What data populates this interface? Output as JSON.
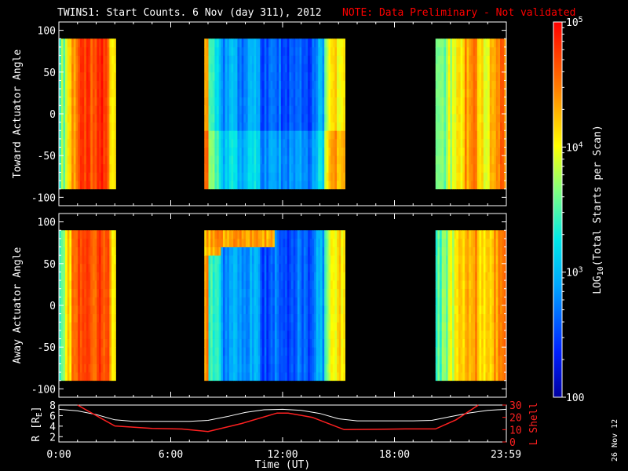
{
  "header": {
    "title": "TWINS1: Start Counts.  6 Nov (day 311), 2012",
    "note": "NOTE: Data Preliminary - Not validated"
  },
  "colors": {
    "background": "#000000",
    "axis": "#ffffff",
    "note_red": "#ff0000",
    "r_line": "#ffffff",
    "l_shell_line": "#ff2020"
  },
  "colorbar": {
    "label": "LOG10(Total Starts per Scan)",
    "label_prefix": "LOG",
    "label_sub": "10",
    "label_suffix": "(Total Starts per Scan)",
    "ticks": [
      {
        "value": 100,
        "text": "100"
      },
      {
        "value": 1000,
        "sup": "3"
      },
      {
        "value": 10000,
        "sup": "4"
      },
      {
        "value": 100000,
        "sup": "5"
      }
    ],
    "tick_base": "10",
    "scale": "log",
    "range": [
      100,
      100000
    ]
  },
  "footer": {
    "date_stamp": "26 Nov 12"
  },
  "chart_data": [
    {
      "type": "heatmap",
      "ylabel": "Toward Actuator Angle",
      "ylim": [
        -110,
        110
      ],
      "yticks": [
        "100",
        "50",
        "0",
        "-50",
        "-100"
      ],
      "ytick_values": [
        100,
        50,
        0,
        -50,
        -100
      ],
      "data_angle_range": [
        -90,
        90
      ],
      "data_time_segments_hours": [
        [
          0.0,
          3.05
        ],
        [
          7.8,
          15.35
        ],
        [
          20.2,
          24.0
        ]
      ],
      "xlim": [
        0,
        24
      ],
      "colorscale": "rainbow-log"
    },
    {
      "type": "heatmap",
      "ylabel": "Away Actuator Angle",
      "ylim": [
        -110,
        110
      ],
      "yticks": [
        "100",
        "50",
        "0",
        "-50",
        "-100"
      ],
      "ytick_values": [
        100,
        50,
        0,
        -50,
        -100
      ],
      "data_angle_range": [
        -90,
        90
      ],
      "data_time_segments_hours": [
        [
          0.0,
          3.05
        ],
        [
          7.8,
          15.35
        ],
        [
          20.2,
          24.0
        ]
      ],
      "xlim": [
        0,
        24
      ],
      "colorscale": "rainbow-log"
    },
    {
      "type": "line",
      "xlabel": "Time (UT)",
      "xticks": [
        "0:00",
        "6:00",
        "12:00",
        "18:00",
        "23:59"
      ],
      "xtick_values": [
        0,
        6,
        12,
        18,
        23.98
      ],
      "xlim": [
        0,
        24
      ],
      "ylabel_left": "R [RE]",
      "ylabel_left_main": "R [R",
      "ylabel_left_sub": "E",
      "ylabel_left_end": "]",
      "ylim_left": [
        1,
        8
      ],
      "yticks_left": [
        "8",
        "6",
        "4",
        "2"
      ],
      "ytick_values_left": [
        8,
        6,
        4,
        2
      ],
      "ylabel_right": "L Shell",
      "ylim_right": [
        0,
        30
      ],
      "yticks_right": [
        "30",
        "20",
        "10",
        "0"
      ],
      "ytick_values_right": [
        30,
        20,
        10,
        0
      ],
      "series": [
        {
          "axis": "left",
          "x": [
            0,
            1,
            2,
            3,
            4,
            5,
            6,
            7,
            8,
            9,
            10,
            11,
            12,
            13,
            14,
            15,
            16,
            17,
            18,
            19,
            20,
            21,
            22,
            23,
            24
          ],
          "values": [
            7.2,
            6.9,
            6.2,
            5.2,
            4.9,
            4.9,
            4.9,
            4.9,
            5.1,
            5.8,
            6.6,
            7.1,
            7.2,
            7.0,
            6.4,
            5.4,
            5.0,
            5.0,
            5.0,
            5.0,
            5.1,
            5.8,
            6.5,
            7.0,
            7.2
          ]
        },
        {
          "axis": "right",
          "x": [
            1.0,
            1.7,
            3.0,
            5.0,
            6.6,
            8.0,
            9.8,
            11.7,
            12.3,
            13.6,
            15.3,
            17.0,
            18.6,
            20.2,
            21.3,
            22.5
          ],
          "values": [
            30,
            24,
            13,
            11,
            10.5,
            8.5,
            15,
            23.5,
            23.5,
            20,
            10,
            10.3,
            10.6,
            10.6,
            18,
            30
          ]
        }
      ]
    }
  ]
}
